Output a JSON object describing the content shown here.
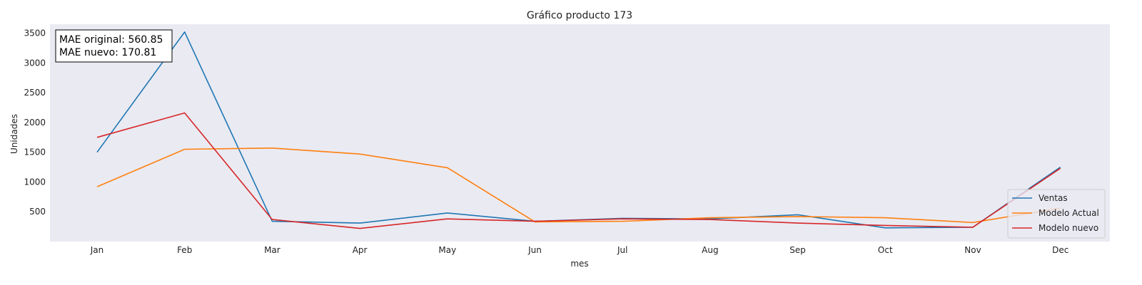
{
  "chart_data": {
    "type": "line",
    "title": "Gráfico producto 173",
    "xlabel": "mes",
    "ylabel": "Unidades",
    "categories": [
      "Jan",
      "Feb",
      "Mar",
      "Apr",
      "May",
      "Jun",
      "Jul",
      "Aug",
      "Sep",
      "Oct",
      "Nov",
      "Dec"
    ],
    "yticks": [
      500,
      1000,
      1500,
      2000,
      2500,
      3000,
      3500
    ],
    "ylim": [
      0,
      3650
    ],
    "grid": false,
    "legend_position": "bottom-right",
    "annotation": {
      "line1": "MAE original: 560.85",
      "line2": "MAE nuevo: 170.81"
    },
    "series": [
      {
        "name": "Ventas",
        "color": "#1f77b4",
        "values": [
          1500,
          3520,
          340,
          310,
          480,
          340,
          390,
          380,
          450,
          230,
          240,
          1250
        ]
      },
      {
        "name": "Modelo Actual",
        "color": "#ff7f0e",
        "values": [
          920,
          1550,
          1570,
          1470,
          1240,
          330,
          340,
          400,
          420,
          400,
          320,
          560
        ]
      },
      {
        "name": "Modelo nuevo",
        "color": "#d62728",
        "values": [
          1750,
          2160,
          370,
          220,
          380,
          340,
          380,
          370,
          310,
          270,
          240,
          1230
        ]
      }
    ]
  }
}
